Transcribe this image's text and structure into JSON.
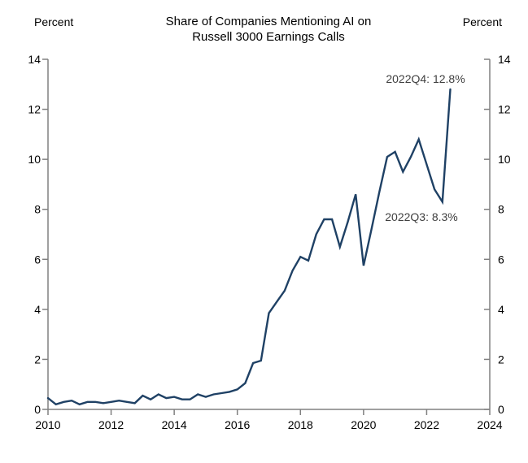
{
  "header": {
    "left_axis_unit": "Percent",
    "right_axis_unit": "Percent",
    "title_line1": "Share of Companies Mentioning AI on",
    "title_line2": "Russell 3000 Earnings Calls"
  },
  "chart_data": {
    "type": "line",
    "title": "Share of Companies Mentioning AI on Russell 3000 Earnings Calls",
    "ylabel_left": "Percent",
    "ylabel_right": "Percent",
    "frequency": "quarterly",
    "x_start": 2010.0,
    "x_step": 0.25,
    "values": [
      0.45,
      0.2,
      0.3,
      0.35,
      0.2,
      0.3,
      0.3,
      0.25,
      0.3,
      0.35,
      0.3,
      0.25,
      0.55,
      0.4,
      0.6,
      0.45,
      0.5,
      0.4,
      0.4,
      0.6,
      0.5,
      0.6,
      0.65,
      0.7,
      0.8,
      1.05,
      1.85,
      1.95,
      3.85,
      4.3,
      4.75,
      5.55,
      6.1,
      5.95,
      7.0,
      7.6,
      7.6,
      6.5,
      7.5,
      8.6,
      5.75,
      7.2,
      8.7,
      10.1,
      10.3,
      9.5,
      10.1,
      10.8,
      9.8,
      8.8,
      8.3,
      12.8
    ],
    "xlim": [
      2010,
      2024
    ],
    "ylim": [
      0,
      14
    ],
    "x_tick_labels": [
      "2010",
      "2012",
      "2014",
      "2016",
      "2018",
      "2020",
      "2022",
      "2024"
    ],
    "x_ticks": [
      2010,
      2012,
      2014,
      2016,
      2018,
      2020,
      2022,
      2024
    ],
    "y_ticks": [
      0,
      2,
      4,
      6,
      8,
      10,
      12,
      14
    ],
    "grid": "off",
    "legend": "none",
    "line_color": "#1f4165",
    "axis_color": "#808080",
    "annotation_color": "#404040",
    "annotations": [
      {
        "text": "2022Q4: 12.8%",
        "x": 2022.75,
        "y": 12.8
      },
      {
        "text": "2022Q3: 8.3%",
        "x": 2022.5,
        "y": 8.3
      }
    ]
  }
}
